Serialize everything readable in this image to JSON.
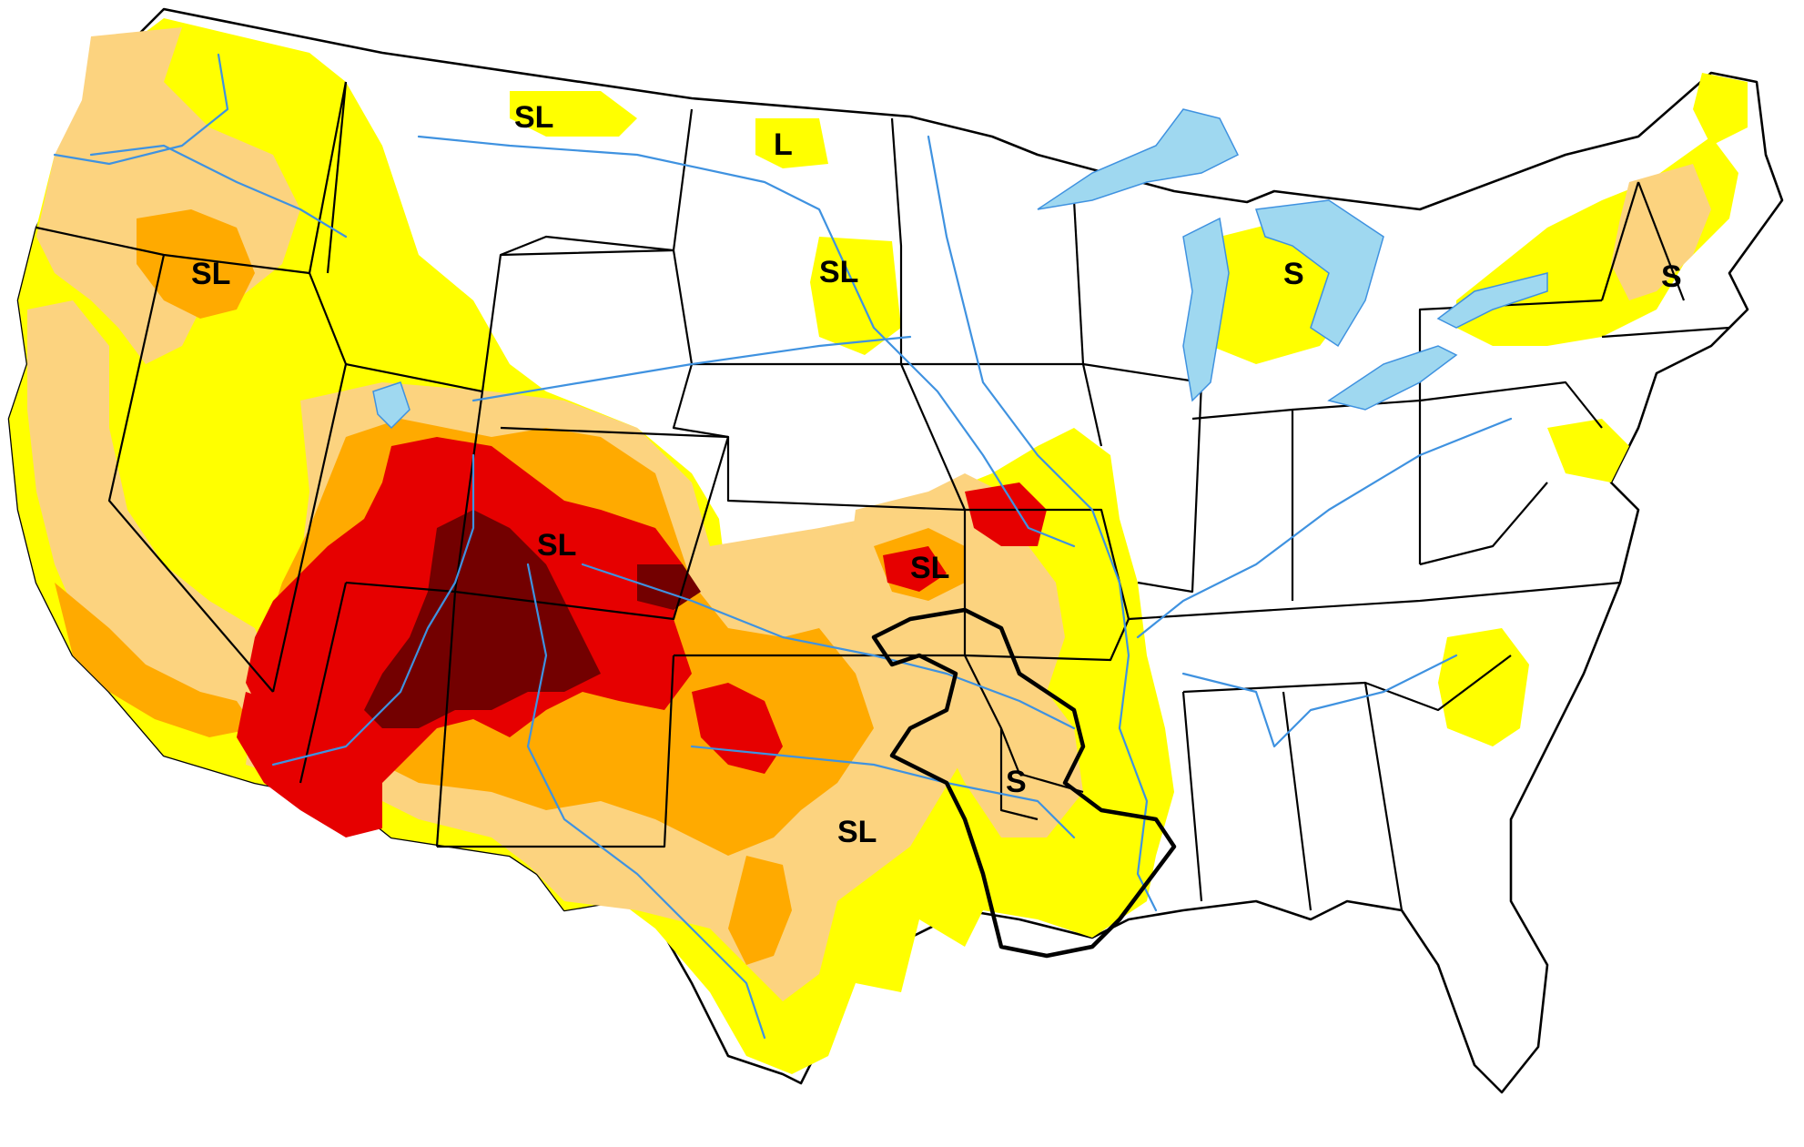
{
  "colors": {
    "water": "#9fd8f0",
    "river": "#3f92e0",
    "d0": "#ffff00",
    "d1": "#fcd37f",
    "d2": "#ffaa00",
    "d3": "#e60000",
    "d4": "#730000",
    "border": "#000000"
  },
  "impact_labels": [
    {
      "id": "northwest",
      "text": "SL"
    },
    {
      "id": "montana",
      "text": "SL"
    },
    {
      "id": "north-dakota",
      "text": "L"
    },
    {
      "id": "south-dakota",
      "text": "SL"
    },
    {
      "id": "michigan",
      "text": "S"
    },
    {
      "id": "new-england",
      "text": "S"
    },
    {
      "id": "colorado",
      "text": "SL"
    },
    {
      "id": "kansas-missouri",
      "text": "SL"
    },
    {
      "id": "arkansas",
      "text": "S"
    },
    {
      "id": "texas",
      "text": "SL"
    }
  ]
}
